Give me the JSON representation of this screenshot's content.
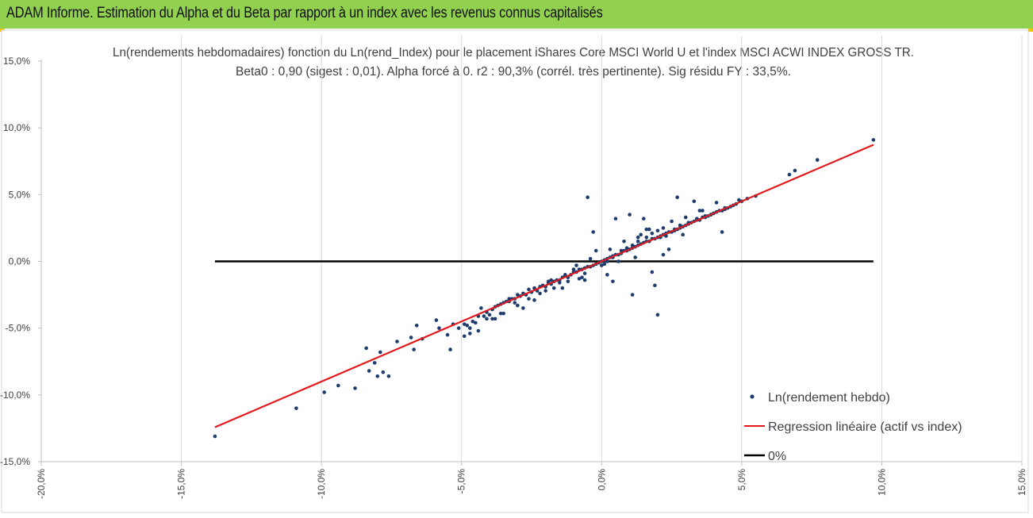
{
  "header": {
    "title": "ADAM Informe. Estimation du Alpha et du Beta par rapport à un index avec les revenus connus capitalisés",
    "bar_color": "#92d050"
  },
  "chart_data": {
    "type": "scatter",
    "title": "Ln(rendements hebdomadaires) fonction du Ln(rend_Index) pour le placement iShares Core MSCI World U et l'index MSCI ACWI INDEX GROSS TR.",
    "subtitle": "Beta0 : 0,90 (sigest : 0,01).  Alpha forcé à 0. r2 : 90,3% (corrél. très pertinente). Sig résidu FY : 33,5%.",
    "xlim": [
      -0.2,
      0.15
    ],
    "ylim": [
      -0.15,
      0.15
    ],
    "x_ticks": [
      "-20,0%",
      "-15,0%",
      "-10,0%",
      "-5,0%",
      "0,0%",
      "5,0%",
      "10,0%",
      "15,0%"
    ],
    "y_ticks": [
      "15,0%",
      "10,0%",
      "5,0%",
      "0,0%",
      "-5,0%",
      "-10,0%",
      "-15,0%"
    ],
    "grid": "vertical",
    "legend_position": "bottom-right",
    "series": [
      {
        "name": "Ln(rendement hebdo)",
        "kind": "points",
        "color": "#1f3c6e",
        "x": [
          -0.138,
          -0.109,
          -0.099,
          -0.094,
          -0.088,
          -0.084,
          -0.083,
          -0.081,
          -0.08,
          -0.079,
          -0.078,
          -0.076,
          -0.073,
          -0.068,
          -0.067,
          -0.066,
          -0.064,
          -0.059,
          -0.058,
          -0.055,
          -0.054,
          -0.053,
          -0.051,
          -0.049,
          -0.048,
          -0.047,
          -0.046,
          -0.045,
          -0.044,
          -0.043,
          -0.042,
          -0.041,
          -0.04,
          -0.039,
          -0.038,
          -0.037,
          -0.036,
          -0.035,
          -0.034,
          -0.033,
          -0.032,
          -0.031,
          -0.03,
          -0.029,
          -0.028,
          -0.027,
          -0.026,
          -0.025,
          -0.024,
          -0.023,
          -0.022,
          -0.021,
          -0.02,
          -0.019,
          -0.018,
          -0.017,
          -0.016,
          -0.015,
          -0.014,
          -0.013,
          -0.012,
          -0.011,
          -0.01,
          -0.009,
          -0.008,
          -0.007,
          -0.006,
          -0.005,
          -0.004,
          -0.003,
          -0.002,
          -0.001,
          0.0,
          0.001,
          0.002,
          0.003,
          0.004,
          0.005,
          0.006,
          0.007,
          0.008,
          0.009,
          0.01,
          0.011,
          0.012,
          0.013,
          0.014,
          0.015,
          0.016,
          0.017,
          0.018,
          0.019,
          0.02,
          0.021,
          0.022,
          0.023,
          0.024,
          0.025,
          0.026,
          0.027,
          0.028,
          0.029,
          0.03,
          0.031,
          0.032,
          0.033,
          0.034,
          0.035,
          0.036,
          0.037,
          0.038,
          0.039,
          0.04,
          0.041,
          0.042,
          0.043,
          0.044,
          0.045,
          0.046,
          0.047,
          0.048,
          0.05,
          0.052,
          0.055,
          0.067,
          0.069,
          0.077,
          0.097,
          -0.047,
          -0.049,
          -0.038,
          -0.03,
          -0.022,
          -0.019,
          -0.013,
          -0.009,
          -0.006,
          -0.005,
          -0.003,
          0.002,
          0.004,
          0.008,
          0.011,
          0.015,
          0.018,
          0.02,
          0.021,
          0.024,
          0.027,
          0.029,
          0.033,
          0.036,
          0.039,
          0.043,
          -0.007,
          -0.012,
          -0.017,
          -0.024,
          -0.028,
          -0.033,
          -0.036,
          -0.041,
          0.005,
          0.01,
          0.013,
          0.016,
          0.019,
          0.022,
          0.025,
          0.03,
          0.035,
          0.041,
          -0.002,
          0.001,
          0.003,
          -0.004,
          0.006,
          0.009,
          -0.008,
          0.012,
          0.014,
          0.017,
          -0.015,
          -0.02,
          -0.026,
          -0.031,
          -0.035,
          -0.039,
          -0.044,
          0.023,
          0.026,
          0.028,
          0.031,
          0.034,
          0.037,
          0.04,
          0.044,
          0.049,
          -0.006,
          0.0,
          0.002,
          0.004,
          0.007,
          -0.01,
          -0.014,
          -0.018,
          0.011,
          0.013,
          0.016,
          0.018,
          0.02,
          0.022
        ],
        "y": [
          -0.131,
          -0.11,
          -0.098,
          -0.093,
          -0.095,
          -0.065,
          -0.082,
          -0.076,
          -0.086,
          -0.068,
          -0.083,
          -0.086,
          -0.06,
          -0.057,
          -0.066,
          -0.048,
          -0.058,
          -0.044,
          -0.05,
          -0.055,
          -0.066,
          -0.047,
          -0.05,
          -0.047,
          -0.048,
          -0.05,
          -0.045,
          -0.046,
          -0.052,
          -0.035,
          -0.041,
          -0.038,
          -0.04,
          -0.036,
          -0.034,
          -0.033,
          -0.032,
          -0.031,
          -0.03,
          -0.03,
          -0.028,
          -0.028,
          -0.025,
          -0.026,
          -0.024,
          -0.025,
          -0.021,
          -0.023,
          -0.02,
          -0.022,
          -0.019,
          -0.018,
          -0.019,
          -0.016,
          -0.017,
          -0.015,
          -0.014,
          -0.014,
          -0.012,
          -0.011,
          -0.012,
          -0.01,
          -0.008,
          -0.008,
          -0.006,
          -0.006,
          -0.005,
          -0.004,
          -0.004,
          -0.003,
          -0.002,
          -0.001,
          0.0,
          0.001,
          0.002,
          0.003,
          0.004,
          0.005,
          0.005,
          0.006,
          0.008,
          0.008,
          0.009,
          0.01,
          0.011,
          0.012,
          0.013,
          0.014,
          0.015,
          0.015,
          0.017,
          0.017,
          0.018,
          0.019,
          0.02,
          0.021,
          0.022,
          0.022,
          0.024,
          0.024,
          0.025,
          0.026,
          0.027,
          0.028,
          0.029,
          0.03,
          0.031,
          0.031,
          0.033,
          0.033,
          0.034,
          0.035,
          0.036,
          0.037,
          0.038,
          0.038,
          0.04,
          0.04,
          0.041,
          0.042,
          0.043,
          0.045,
          0.047,
          0.049,
          0.065,
          0.068,
          0.076,
          0.091,
          -0.054,
          -0.056,
          -0.043,
          -0.033,
          -0.024,
          -0.015,
          -0.01,
          -0.003,
          -0.014,
          0.048,
          0.022,
          -0.01,
          -0.015,
          0.015,
          -0.025,
          0.032,
          -0.008,
          -0.04,
          0.018,
          0.009,
          0.048,
          0.02,
          0.045,
          0.038,
          0.035,
          0.022,
          -0.012,
          -0.015,
          -0.02,
          -0.029,
          -0.035,
          -0.028,
          -0.039,
          -0.043,
          0.032,
          0.035,
          0.018,
          0.024,
          -0.018,
          0.005,
          0.03,
          0.033,
          0.038,
          0.044,
          0.008,
          -0.002,
          0.009,
          0.002,
          0.0,
          0.01,
          -0.013,
          0.003,
          0.02,
          0.024,
          -0.016,
          -0.022,
          -0.028,
          -0.031,
          -0.039,
          -0.043,
          -0.041,
          0.019,
          0.023,
          0.027,
          0.029,
          0.032,
          0.034,
          0.036,
          0.039,
          0.046,
          -0.009,
          -0.003,
          0.0,
          0.003,
          0.008,
          -0.006,
          -0.02,
          -0.014,
          0.012,
          0.015,
          0.018,
          0.021,
          0.023,
          0.025
        ]
      },
      {
        "name": "Regression linéaire (actif vs index)",
        "kind": "line",
        "color": "#e31a1c",
        "x": [
          -0.138,
          0.097
        ],
        "y": [
          -0.1242,
          0.0873
        ]
      },
      {
        "name": "0%",
        "kind": "line",
        "color": "#000000",
        "x": [
          -0.138,
          0.097
        ],
        "y": [
          0.0,
          0.0
        ]
      }
    ]
  }
}
